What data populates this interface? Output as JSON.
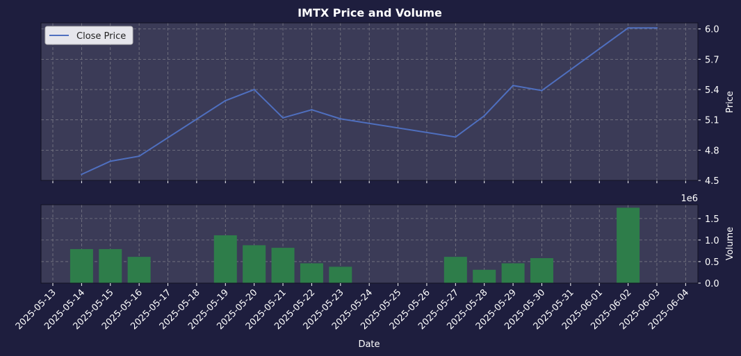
{
  "chart_data": {
    "type": "line",
    "title": "IMTX Price and Volume",
    "xlabel": "Date",
    "dates": [
      "2025-05-13",
      "2025-05-14",
      "2025-05-15",
      "2025-05-16",
      "2025-05-17",
      "2025-05-18",
      "2025-05-19",
      "2025-05-20",
      "2025-05-21",
      "2025-05-22",
      "2025-05-23",
      "2025-05-24",
      "2025-05-25",
      "2025-05-26",
      "2025-05-27",
      "2025-05-28",
      "2025-05-29",
      "2025-05-30",
      "2025-05-31",
      "2025-06-01",
      "2025-06-02",
      "2025-06-03",
      "2025-06-04"
    ],
    "price_panel": {
      "ylabel": "Price",
      "ylim": [
        4.5,
        6.06
      ],
      "yticks": [
        "4.5",
        "4.8",
        "5.1",
        "5.4",
        "5.7",
        "6.0"
      ],
      "legend": "Close Price",
      "legend_position": "top-left",
      "color": "#4f6fbf",
      "series": {
        "name": "Close Price",
        "x": [
          "2025-05-14",
          "2025-05-15",
          "2025-05-16",
          "2025-05-19",
          "2025-05-20",
          "2025-05-21",
          "2025-05-22",
          "2025-05-23",
          "2025-05-27",
          "2025-05-28",
          "2025-05-29",
          "2025-05-30",
          "2025-06-02",
          "2025-06-03"
        ],
        "values": [
          4.56,
          4.69,
          4.74,
          5.29,
          5.4,
          5.12,
          5.2,
          5.11,
          4.93,
          5.14,
          5.44,
          5.39,
          6.01,
          6.01
        ]
      }
    },
    "volume_panel": {
      "ylabel": "Volume",
      "multiplier": "1e6",
      "ylim": [
        0,
        1.82
      ],
      "yticks": [
        "0.0",
        "0.5",
        "1.0",
        "1.5"
      ],
      "color": "#2e7d4a",
      "series": {
        "name": "Volume",
        "x": [
          "2025-05-14",
          "2025-05-15",
          "2025-05-16",
          "2025-05-19",
          "2025-05-20",
          "2025-05-21",
          "2025-05-22",
          "2025-05-23",
          "2025-05-27",
          "2025-05-28",
          "2025-05-29",
          "2025-05-30",
          "2025-06-02"
        ],
        "values": [
          0.79,
          0.79,
          0.61,
          1.11,
          0.88,
          0.82,
          0.46,
          0.38,
          0.61,
          0.31,
          0.46,
          0.58,
          1.75
        ]
      }
    },
    "grid": true
  }
}
